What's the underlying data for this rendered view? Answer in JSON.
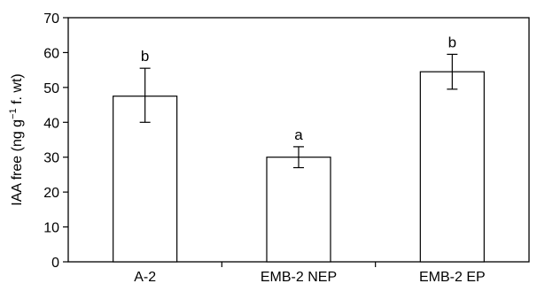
{
  "chart_data": {
    "type": "bar",
    "title": "",
    "xlabel": "",
    "ylabel": "IAA free (ng g",
    "ylabel_superscript": "−1",
    "ylabel_suffix": " f. wt)",
    "categories": [
      "A-2",
      "EMB-2 NEP",
      "EMB-2 EP"
    ],
    "values": [
      47.5,
      30.0,
      54.5
    ],
    "error_low": [
      40.0,
      27.0,
      49.5
    ],
    "error_high": [
      55.5,
      33.0,
      59.5
    ],
    "significance_letters": [
      "b",
      "a",
      "b"
    ],
    "ylim": [
      0,
      70
    ],
    "yticks": [
      0,
      10,
      20,
      30,
      40,
      50,
      60,
      70
    ],
    "grid": false,
    "legend": "none",
    "colors": {
      "bar_fill": "#ffffff",
      "bar_stroke": "#000000",
      "axis": "#000000"
    }
  }
}
